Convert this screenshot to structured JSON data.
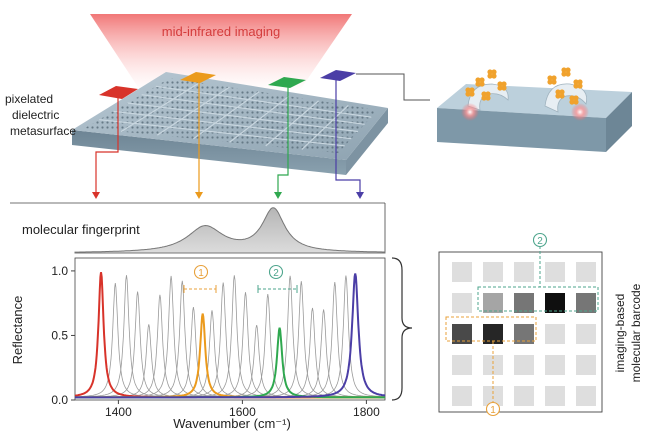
{
  "labels": {
    "imaging": "mid-infrared imaging",
    "metasurface": [
      "pixelated",
      "dielectric",
      "metasurface"
    ],
    "fingerprint": "molecular fingerprint",
    "barcode": [
      "imaging-based",
      "molecular barcode"
    ]
  },
  "markers": {
    "one": "1",
    "two": "2"
  },
  "colors": {
    "red": "#d8332a",
    "orange": "#eb9a1c",
    "green": "#2fa84f",
    "purple": "#4b3ea6",
    "gray": "#9a9a9a",
    "imaging_glow": "#f07878",
    "teal_dash": "#4ea58d",
    "orange_dash": "#e8a13b"
  },
  "chart_data": {
    "type": "line",
    "xlabel": "Wavenumber (cm⁻¹)",
    "ylabel": "Reflectance",
    "xlim": [
      1330,
      1830
    ],
    "ylim": [
      0,
      1.1
    ],
    "xticks": [
      1400,
      1600,
      1800
    ],
    "yticks": [
      0.0,
      0.5,
      1.0
    ],
    "ytick_labels": [
      "0.0",
      "0.5",
      "1.0"
    ],
    "resonance_series": [
      {
        "color": "red",
        "center": 1372,
        "peak": 0.97,
        "width": 5
      },
      {
        "color": "orange",
        "center": 1536,
        "peak": 0.65,
        "width": 5
      },
      {
        "color": "green",
        "center": 1660,
        "peak": 0.54,
        "width": 5
      },
      {
        "color": "purple",
        "center": 1782,
        "peak": 0.96,
        "width": 6
      }
    ],
    "gray_resonance_centers": [
      1395,
      1413,
      1431,
      1449,
      1467,
      1485,
      1503,
      1521,
      1551,
      1569,
      1587,
      1605,
      1623,
      1641,
      1677,
      1695,
      1713,
      1731,
      1749,
      1767
    ],
    "fingerprint": {
      "bands": [
        {
          "center": 1540,
          "height": 0.6,
          "width": 35
        },
        {
          "center": 1650,
          "height": 1.0,
          "width": 22
        }
      ]
    },
    "band_markers": [
      {
        "label": "1",
        "from": 1515,
        "to": 1560
      },
      {
        "label": "2",
        "from": 1635,
        "to": 1685
      }
    ]
  },
  "barcode": {
    "rows": 5,
    "cols": 5,
    "cells": [
      [
        0.1,
        0.1,
        0.1,
        0.1,
        0.1
      ],
      [
        0.1,
        0.35,
        0.55,
        1.0,
        0.55
      ],
      [
        0.75,
        0.9,
        0.55,
        0.1,
        0.1
      ],
      [
        0.1,
        0.1,
        0.1,
        0.1,
        0.1
      ],
      [
        0.1,
        0.1,
        0.1,
        0.1,
        0.1
      ]
    ]
  }
}
